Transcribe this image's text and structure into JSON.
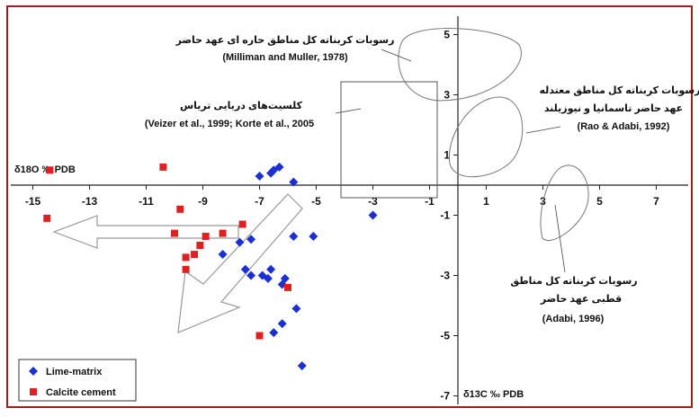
{
  "chart_data": {
    "type": "scatter",
    "x_axis": {
      "label": "δ18O ‰ PDB",
      "ticks": [
        -15,
        -13,
        -11,
        -9,
        -7,
        -5,
        -3,
        -1,
        1,
        3,
        5,
        7
      ]
    },
    "y_axis": {
      "label": "δ13C ‰ PDB",
      "ticks": [
        5,
        3,
        1,
        -1,
        -3,
        -5,
        -7
      ]
    },
    "grid": false,
    "legend_position": "bottom-left",
    "series": [
      {
        "name": "Lime-matrix",
        "marker": "diamond",
        "color": "#1a2fd6",
        "points": [
          [
            -7.0,
            0.3
          ],
          [
            -6.5,
            0.5
          ],
          [
            -6.3,
            0.6
          ],
          [
            -6.6,
            0.4
          ],
          [
            -5.8,
            0.1
          ],
          [
            -3.0,
            -1.0
          ],
          [
            -5.8,
            -1.7
          ],
          [
            -5.1,
            -1.7
          ],
          [
            -7.3,
            -1.8
          ],
          [
            -7.7,
            -1.9
          ],
          [
            -8.3,
            -2.3
          ],
          [
            -7.5,
            -2.8
          ],
          [
            -7.3,
            -3.0
          ],
          [
            -6.9,
            -3.0
          ],
          [
            -6.6,
            -2.8
          ],
          [
            -6.7,
            -3.1
          ],
          [
            -6.1,
            -3.1
          ],
          [
            -6.2,
            -3.3
          ],
          [
            -5.7,
            -4.1
          ],
          [
            -6.2,
            -4.6
          ],
          [
            -6.5,
            -4.9
          ],
          [
            -5.5,
            -6.0
          ]
        ]
      },
      {
        "name": "Calcite cement",
        "marker": "square",
        "color": "#e02020",
        "points": [
          [
            -14.4,
            0.5
          ],
          [
            -14.5,
            -1.1
          ],
          [
            -10.4,
            0.6
          ],
          [
            -9.8,
            -0.8
          ],
          [
            -7.6,
            -1.3
          ],
          [
            -8.3,
            -1.6
          ],
          [
            -10.0,
            -1.6
          ],
          [
            -8.9,
            -1.7
          ],
          [
            -9.1,
            -2.0
          ],
          [
            -9.3,
            -2.3
          ],
          [
            -9.6,
            -2.4
          ],
          [
            -9.6,
            -2.8
          ],
          [
            -6.0,
            -3.4
          ],
          [
            -7.0,
            -5.0
          ]
        ]
      }
    ],
    "annotations": [
      {
        "lines": [
          "رسوبات کربناته کل مناطق حاره ای عهد حاضر",
          "(Milliman and Muller, 1978)"
        ]
      },
      {
        "lines": [
          "کلسیت‌های دریایی تریاس",
          "(Veizer et al., 1999; Korte et al., 2005"
        ]
      },
      {
        "lines": [
          "رسوبات کربناته کل مناطق معتدله",
          "عهد حاضر تاسمانیا و نیوزیلند",
          "(Rao & Adabi, 1992)"
        ]
      },
      {
        "lines": [
          "رسوبات کربناته کل مناطق",
          "قطبی عهد حاضر",
          "(Adabi, 1996)"
        ]
      }
    ]
  }
}
